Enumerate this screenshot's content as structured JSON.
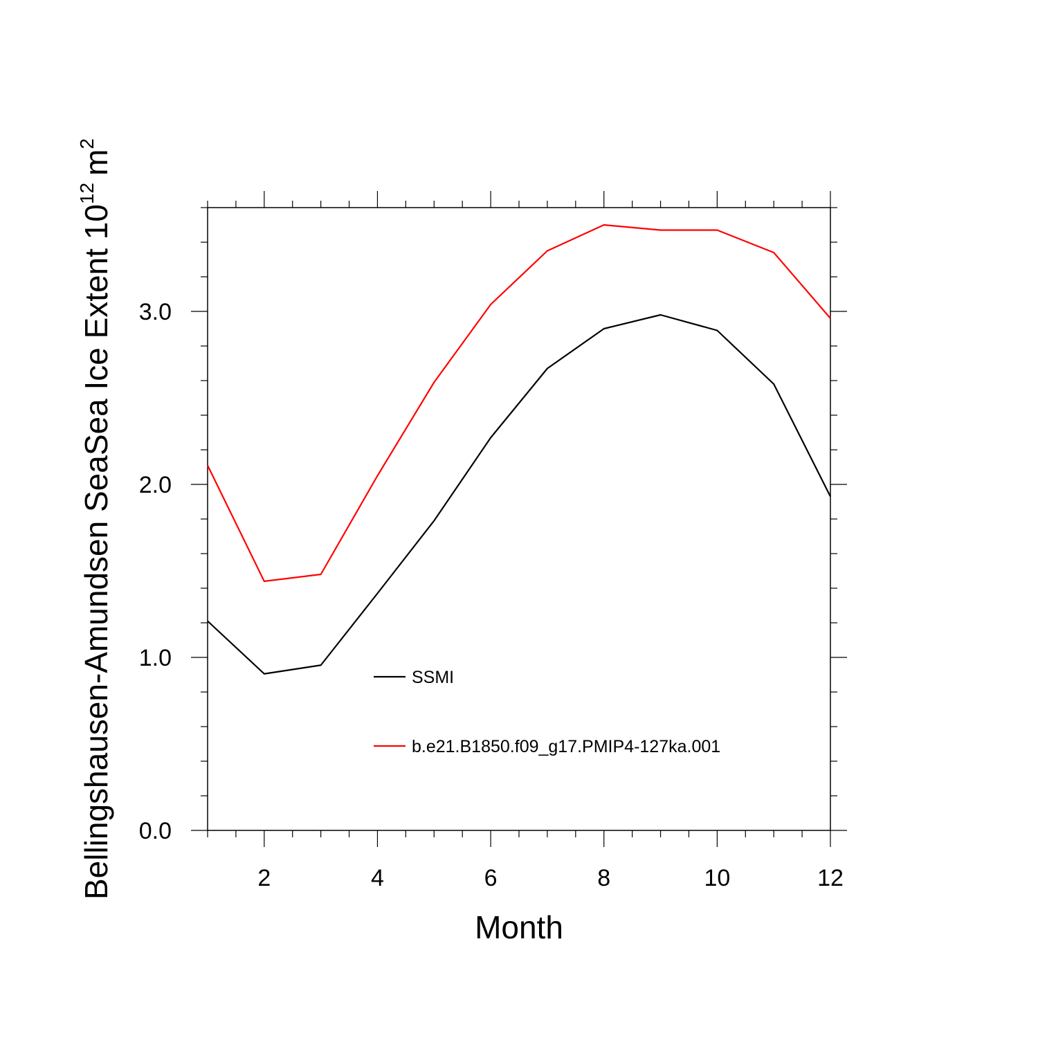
{
  "chart_data": {
    "type": "line",
    "xlabel": "Month",
    "ylabel": "Bellingshausen-Amundsen SeaSea Ice Extent 10",
    "ylabel_exponent": "12",
    "ylabel_unit": "m",
    "ylabel_unit_exponent": "2",
    "xlim": [
      1,
      12
    ],
    "ylim": [
      0,
      3.6
    ],
    "x_ticks": [
      2,
      4,
      6,
      8,
      10,
      12
    ],
    "x_tick_labels": [
      "2",
      "4",
      "6",
      "8",
      "10",
      "12"
    ],
    "y_ticks": [
      0,
      1,
      2,
      3
    ],
    "y_tick_labels": [
      "0.0",
      "1.0",
      "2.0",
      "3.0"
    ],
    "grid": false,
    "legend_position": "inside-center",
    "x": [
      1,
      2,
      3,
      4,
      5,
      6,
      7,
      8,
      9,
      10,
      11,
      12
    ],
    "series": [
      {
        "name": "SSMI",
        "color": "#000000",
        "values": [
          1.21,
          0.905,
          0.955,
          1.37,
          1.79,
          2.27,
          2.67,
          2.9,
          2.98,
          2.89,
          2.58,
          1.93
        ]
      },
      {
        "name": "b.e21.B1850.f09_g17.PMIP4-127ka.001",
        "color": "#ff0000",
        "values": [
          2.11,
          1.44,
          1.48,
          2.05,
          2.59,
          3.04,
          3.35,
          3.5,
          3.47,
          3.47,
          3.34,
          2.96
        ]
      }
    ]
  }
}
